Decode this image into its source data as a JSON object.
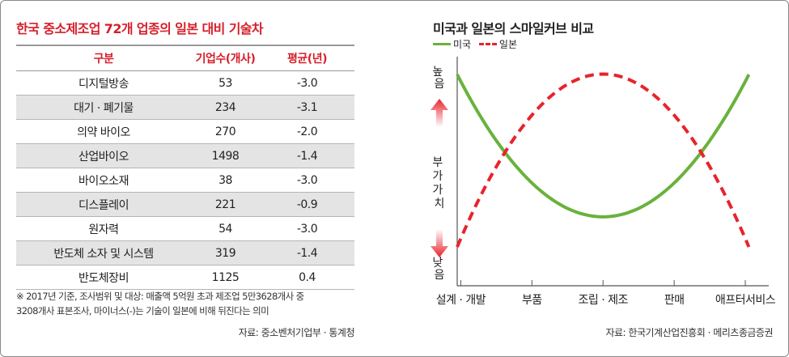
{
  "left_panel": {
    "title": "한국 중소제조업 72개 업종의 일본 대비 기술차",
    "columns": [
      "구분",
      "기업수(개사)",
      "평균(년)"
    ],
    "rows": [
      {
        "name": "디지털방송",
        "count": "53",
        "years": "-3.0"
      },
      {
        "name": "대기 · 폐기물",
        "count": "234",
        "years": "-3.1"
      },
      {
        "name": "의약 바이오",
        "count": "270",
        "years": "-2.0"
      },
      {
        "name": "산업바이오",
        "count": "1498",
        "years": "-1.4"
      },
      {
        "name": "바이오소재",
        "count": "38",
        "years": "-3.0"
      },
      {
        "name": "디스플레이",
        "count": "221",
        "years": "-0.9"
      },
      {
        "name": "원자력",
        "count": "54",
        "years": "-3.0"
      },
      {
        "name": "반도체 소자 및 시스템",
        "count": "319",
        "years": "-1.4"
      },
      {
        "name": "반도체장비",
        "count": "1125",
        "years": "0.4"
      }
    ],
    "note_line1": "※ 2017년 기준, 조사범위 및 대상: 매출액 5억원 초과 제조업 5만3628개사 중",
    "note_line2": "3208개사 표본조사, 마이너스(-)는 기술이 일본에 비해 뒤진다는 의미",
    "source": "자료: 중소벤처기업부 · 통계청"
  },
  "right_panel": {
    "title": "미국과 일본의 스마일커브 비교",
    "legend_us": "미국",
    "legend_jp": "일본",
    "source": "자료: 한국기계산업진흥회 · 메리츠종금증권"
  },
  "chart_data": {
    "type": "line",
    "title": "미국과 일본의 스마일커브 비교",
    "xlabel": "",
    "ylabel": "부가가치",
    "y_top_label": "높음",
    "y_bottom_label": "낮음",
    "categories": [
      "설계 · 개발",
      "부품",
      "조립 · 제조",
      "판매",
      "애프터서비스"
    ],
    "x_range": [
      -0.05,
      4.33
    ],
    "ylim": [
      0,
      1
    ],
    "grid": false,
    "legend_position": "top-left",
    "series": [
      {
        "name": "미국",
        "color": "#69b23c",
        "style": "solid",
        "x": [
          -0.05,
          1.0,
          2.0,
          3.0,
          4.05
        ],
        "y": [
          0.96,
          0.44,
          0.27,
          0.44,
          0.96
        ]
      },
      {
        "name": "일본",
        "color": "#e8232c",
        "style": "dashed",
        "x": [
          -0.05,
          1.0,
          2.0,
          3.0,
          4.05
        ],
        "y": [
          0.13,
          0.76,
          0.97,
          0.76,
          0.13
        ]
      }
    ]
  }
}
